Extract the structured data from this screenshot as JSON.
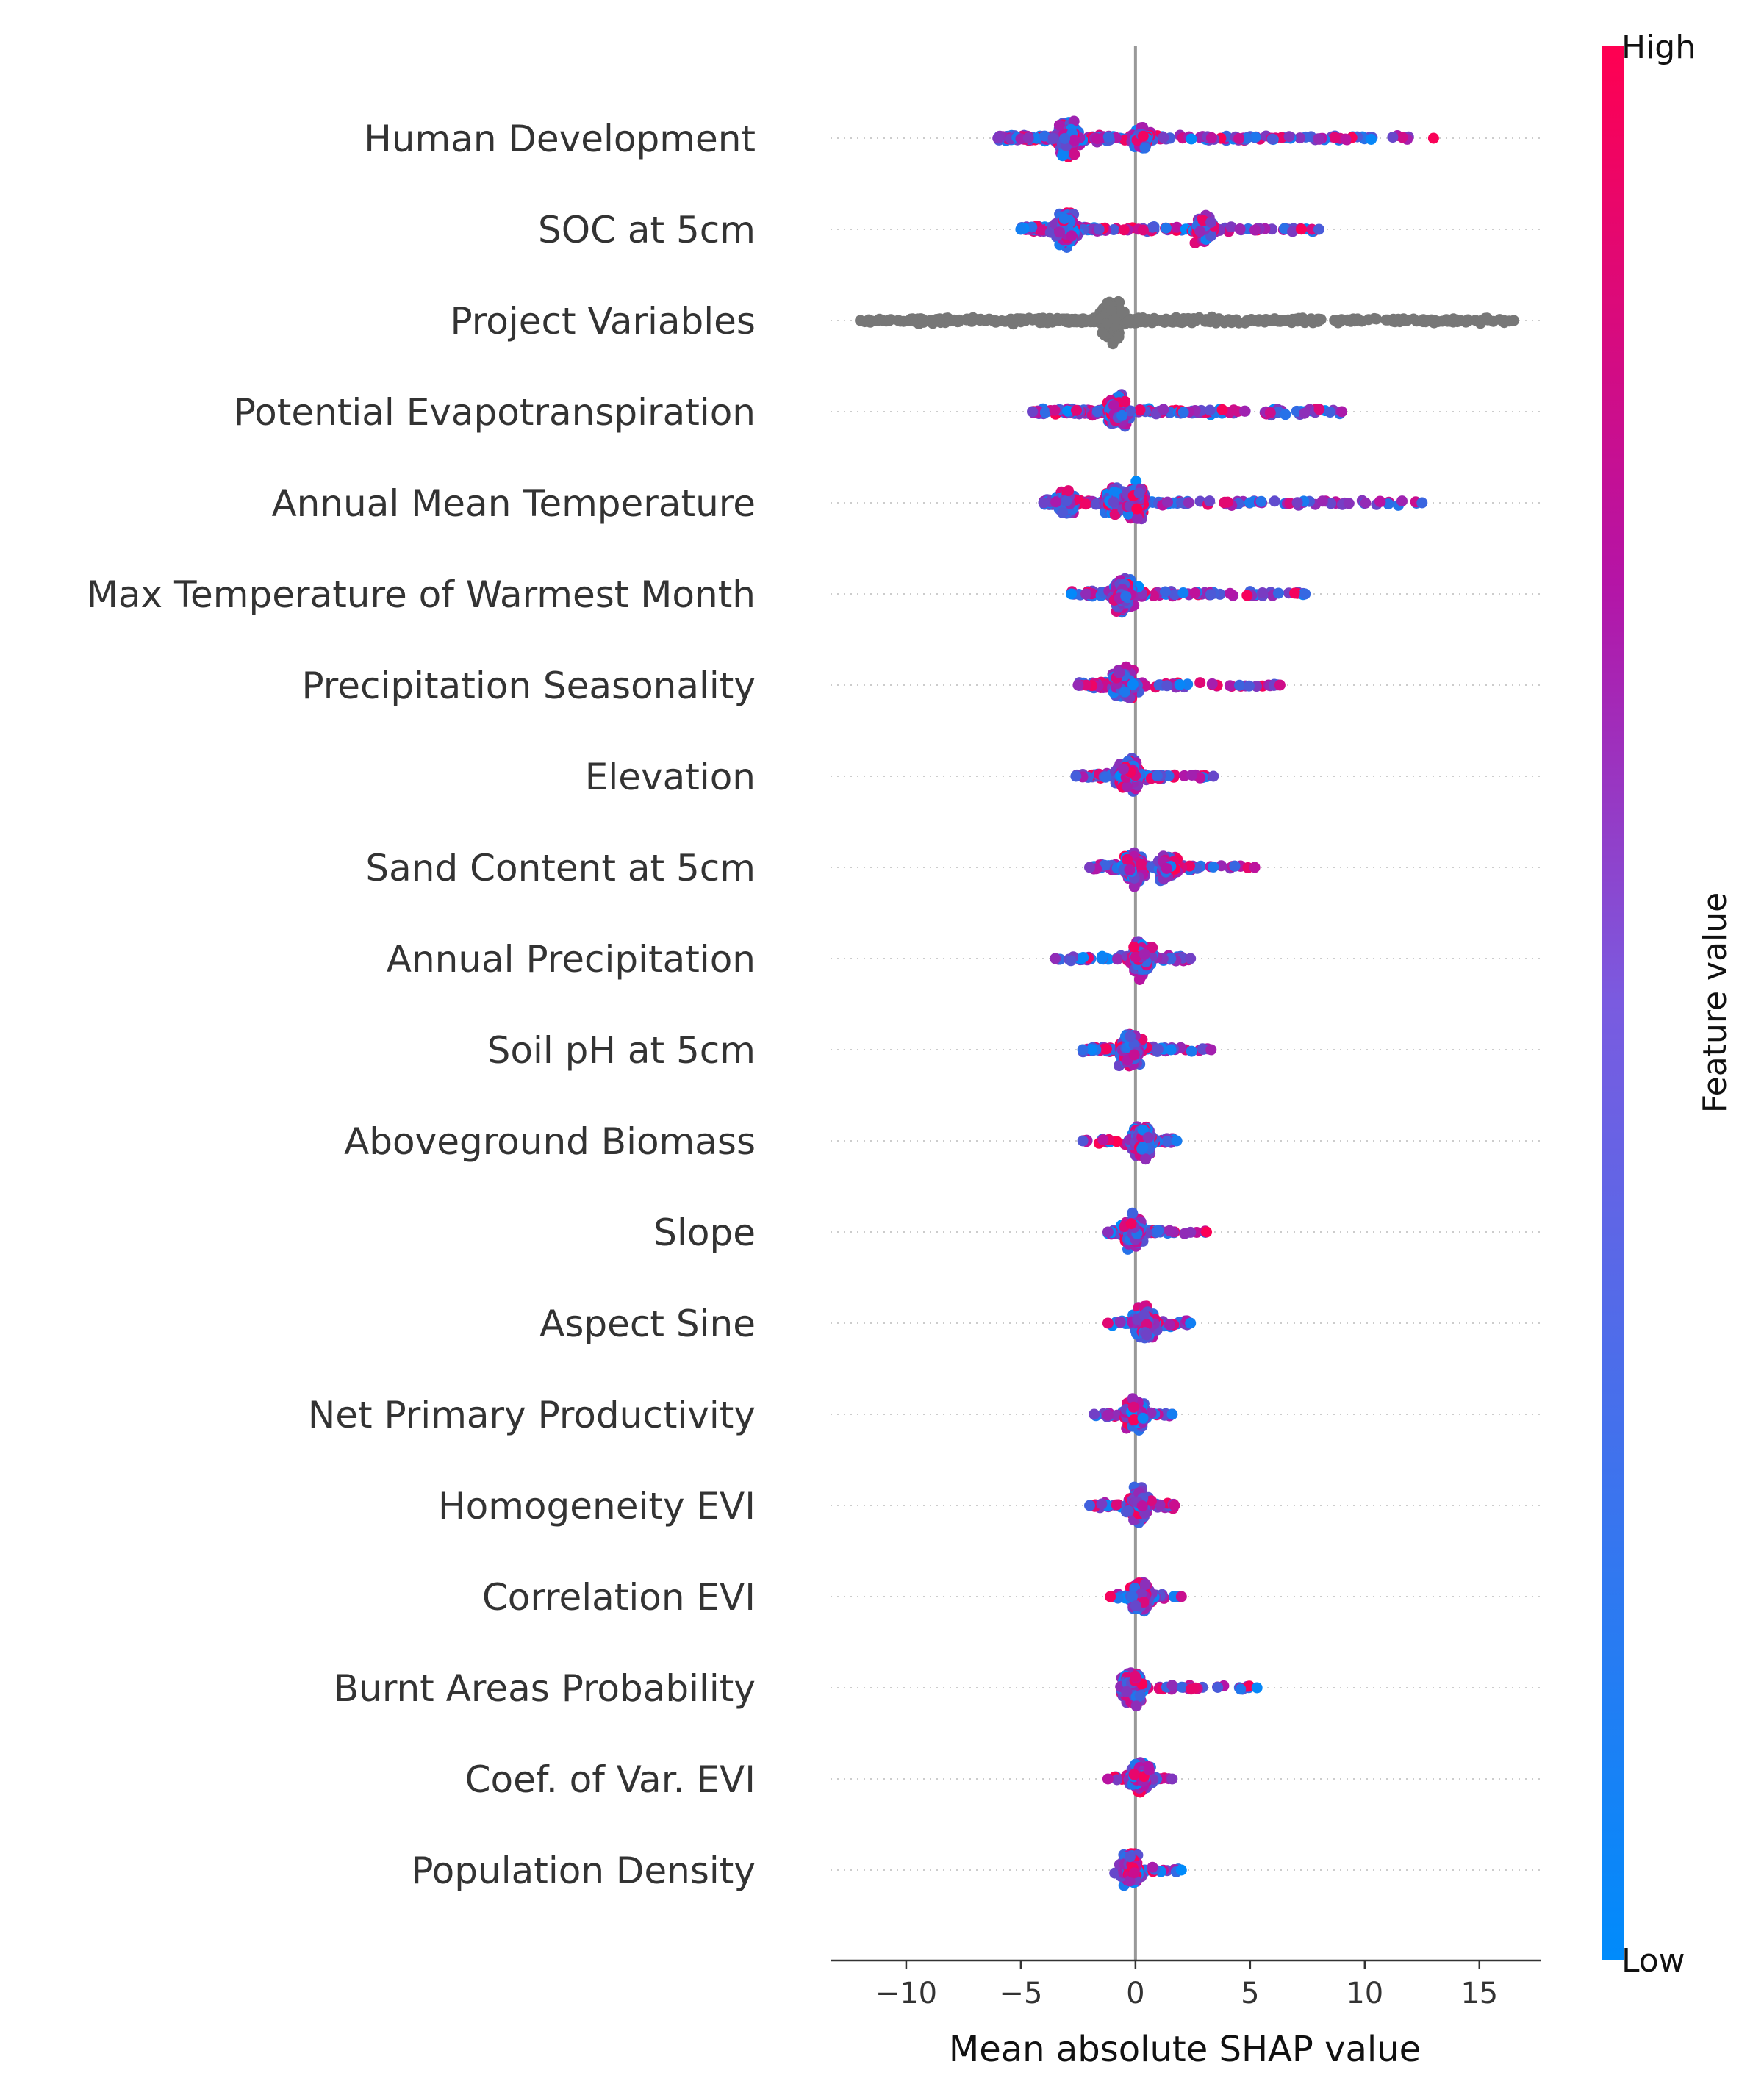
{
  "chart_data": {
    "type": "scatter",
    "subtype": "shap-beeswarm",
    "xlabel": "Mean absolute SHAP value",
    "xlim": [
      -13.3,
      17.7
    ],
    "xticks": [
      -10,
      -5,
      0,
      5,
      10,
      15
    ],
    "xtick_labels": [
      "−10",
      "−5",
      "0",
      "5",
      "10",
      "15"
    ],
    "colorbar": {
      "title": "Feature value",
      "high_label": "High",
      "low_label": "Low",
      "low_color": "#008bfb",
      "high_color": "#ff0051"
    },
    "zero_line_color": "#999999",
    "grid_color": "#cccccc",
    "uncolored_point_color": "#777777",
    "features": [
      {
        "name": "Human Development",
        "min": -6.0,
        "max": 13.0,
        "clusters": [
          [
            -3.0,
            2.3
          ],
          [
            0.3,
            1.0
          ]
        ],
        "color": "mixed"
      },
      {
        "name": "SOC at 5cm",
        "min": -5.0,
        "max": 8.0,
        "clusters": [
          [
            -3.0,
            2.0
          ],
          [
            3.0,
            1.5
          ]
        ],
        "color": "mixed"
      },
      {
        "name": "Project Variables",
        "min": -12.0,
        "max": 16.5,
        "clusters": [
          [
            -1.0,
            2.8
          ]
        ],
        "color": "none"
      },
      {
        "name": "Potential Evapotranspiration",
        "min": -4.5,
        "max": 9.0,
        "clusters": [
          [
            -0.8,
            2.0
          ]
        ],
        "color": "mixed"
      },
      {
        "name": "Annual Mean Temperature",
        "min": -4.0,
        "max": 12.5,
        "clusters": [
          [
            -3.0,
            1.3
          ],
          [
            -1.0,
            1.8
          ],
          [
            0.0,
            2.0
          ]
        ],
        "color": "mixed"
      },
      {
        "name": "Max Temperature of Warmest Month",
        "min": -2.8,
        "max": 7.4,
        "clusters": [
          [
            -0.5,
            2.2
          ]
        ],
        "color": "mixed"
      },
      {
        "name": "Precipitation Seasonality",
        "min": -2.5,
        "max": 6.3,
        "clusters": [
          [
            -0.5,
            2.0
          ]
        ],
        "color": "mixed"
      },
      {
        "name": "Elevation",
        "min": -2.6,
        "max": 3.4,
        "clusters": [
          [
            -0.3,
            2.2
          ]
        ],
        "color": "mixed"
      },
      {
        "name": "Sand Content at 5cm",
        "min": -2.0,
        "max": 5.2,
        "clusters": [
          [
            0.0,
            2.0
          ],
          [
            1.4,
            1.5
          ]
        ],
        "color": "mixed"
      },
      {
        "name": "Annual Precipitation",
        "min": -3.5,
        "max": 2.4,
        "clusters": [
          [
            0.3,
            2.2
          ]
        ],
        "color": "mixed"
      },
      {
        "name": "Soil pH at 5cm",
        "min": -2.3,
        "max": 3.3,
        "clusters": [
          [
            -0.2,
            2.0
          ]
        ],
        "color": "mixed"
      },
      {
        "name": "Aboveground Biomass",
        "min": -2.3,
        "max": 1.8,
        "clusters": [
          [
            0.3,
            2.0
          ]
        ],
        "color": "mixed"
      },
      {
        "name": "Slope",
        "min": -1.2,
        "max": 3.1,
        "clusters": [
          [
            -0.1,
            2.0
          ]
        ],
        "color": "mixed"
      },
      {
        "name": "Aspect Sine",
        "min": -1.2,
        "max": 2.4,
        "clusters": [
          [
            0.4,
            2.1
          ]
        ],
        "color": "mixed"
      },
      {
        "name": "Net Primary Productivity",
        "min": -1.8,
        "max": 1.6,
        "clusters": [
          [
            0.0,
            2.0
          ]
        ],
        "color": "mixed"
      },
      {
        "name": "Homogeneity EVI",
        "min": -2.0,
        "max": 1.7,
        "clusters": [
          [
            0.1,
            2.0
          ]
        ],
        "color": "mixed"
      },
      {
        "name": "Correlation EVI",
        "min": -1.1,
        "max": 2.0,
        "clusters": [
          [
            0.2,
            2.0
          ]
        ],
        "color": "mixed"
      },
      {
        "name": "Burnt Areas Probability",
        "min": -0.3,
        "max": 5.3,
        "clusters": [
          [
            -0.1,
            2.0
          ]
        ],
        "color": "mixed"
      },
      {
        "name": "Coef. of Var. EVI",
        "min": -1.2,
        "max": 1.6,
        "clusters": [
          [
            0.2,
            2.0
          ]
        ],
        "color": "mixed"
      },
      {
        "name": "Population Density",
        "min": -0.6,
        "max": 2.0,
        "clusters": [
          [
            -0.2,
            2.0
          ]
        ],
        "color": "mixed"
      }
    ]
  }
}
